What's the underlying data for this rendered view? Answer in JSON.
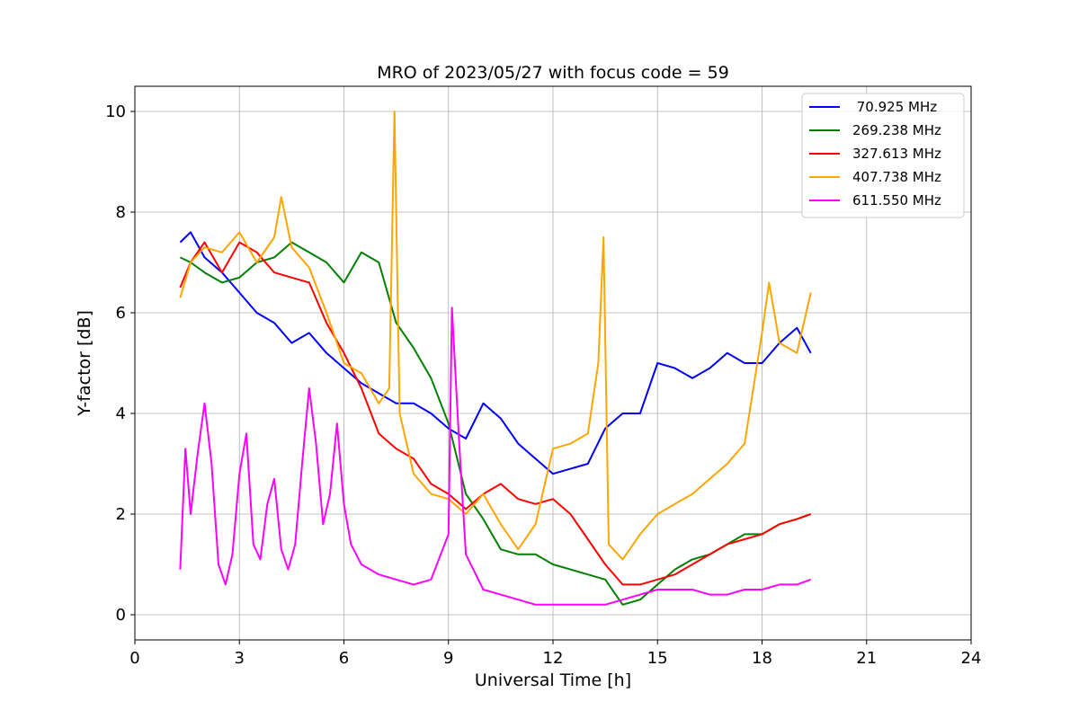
{
  "chart_data": {
    "type": "line",
    "title": "MRO of 2023/05/27 with focus code = 59",
    "xlabel": "Universal Time [h]",
    "ylabel": "Y-factor [dB]",
    "xlim": [
      0,
      24
    ],
    "ylim": [
      -0.5,
      10.5
    ],
    "xticks": [
      0,
      3,
      6,
      9,
      12,
      15,
      18,
      21,
      24
    ],
    "yticks": [
      0,
      2,
      4,
      6,
      8,
      10
    ],
    "grid": true,
    "legend_position": "top-right",
    "series": [
      {
        "name": " 70.925 MHz",
        "color": "#0000ff",
        "x": [
          1.3,
          1.6,
          2.0,
          2.5,
          3.0,
          3.5,
          4.0,
          4.5,
          5.0,
          5.5,
          6.0,
          6.5,
          7.0,
          7.5,
          8.0,
          8.5,
          9.0,
          9.5,
          10.0,
          10.5,
          11.0,
          11.5,
          12.0,
          12.5,
          13.0,
          13.5,
          14.0,
          14.5,
          15.0,
          15.5,
          16.0,
          16.5,
          17.0,
          17.5,
          18.0,
          18.5,
          19.0,
          19.4
        ],
        "y": [
          7.4,
          7.6,
          7.1,
          6.8,
          6.4,
          6.0,
          5.8,
          5.4,
          5.6,
          5.2,
          4.9,
          4.6,
          4.4,
          4.2,
          4.2,
          4.0,
          3.7,
          3.5,
          4.2,
          3.9,
          3.4,
          3.1,
          2.8,
          2.9,
          3.0,
          3.7,
          4.0,
          4.0,
          5.0,
          4.9,
          4.7,
          4.9,
          5.2,
          5.0,
          5.0,
          5.4,
          5.7,
          5.2
        ]
      },
      {
        "name": "269.238 MHz",
        "color": "#008000",
        "x": [
          1.3,
          1.6,
          2.0,
          2.5,
          3.0,
          3.5,
          4.0,
          4.5,
          5.0,
          5.5,
          6.0,
          6.5,
          7.0,
          7.5,
          8.0,
          8.5,
          9.0,
          9.5,
          10.0,
          10.5,
          11.0,
          11.5,
          12.0,
          12.5,
          13.0,
          13.5,
          14.0,
          14.5,
          15.0,
          15.5,
          16.0,
          16.5,
          17.0,
          17.5,
          18.0,
          18.5,
          19.0,
          19.4
        ],
        "y": [
          7.1,
          7.0,
          6.8,
          6.6,
          6.7,
          7.0,
          7.1,
          7.4,
          7.2,
          7.0,
          6.6,
          7.2,
          7.0,
          5.8,
          5.3,
          4.7,
          3.8,
          2.4,
          1.9,
          1.3,
          1.2,
          1.2,
          1.0,
          0.9,
          0.8,
          0.7,
          0.2,
          0.3,
          0.6,
          0.9,
          1.1,
          1.2,
          1.4,
          1.6,
          1.6,
          1.8,
          1.9,
          2.0
        ]
      },
      {
        "name": "327.613 MHz",
        "color": "#ff0000",
        "x": [
          1.3,
          1.6,
          2.0,
          2.5,
          3.0,
          3.5,
          4.0,
          4.5,
          5.0,
          5.5,
          6.0,
          6.5,
          7.0,
          7.5,
          8.0,
          8.5,
          9.0,
          9.5,
          10.0,
          10.5,
          11.0,
          11.5,
          12.0,
          12.5,
          13.0,
          13.5,
          14.0,
          14.5,
          15.0,
          15.5,
          16.0,
          16.5,
          17.0,
          17.5,
          18.0,
          18.5,
          19.0,
          19.4
        ],
        "y": [
          6.5,
          7.0,
          7.4,
          6.8,
          7.4,
          7.2,
          6.8,
          6.7,
          6.6,
          5.8,
          5.2,
          4.5,
          3.6,
          3.3,
          3.1,
          2.6,
          2.4,
          2.1,
          2.4,
          2.6,
          2.3,
          2.2,
          2.3,
          2.0,
          1.5,
          1.0,
          0.6,
          0.6,
          0.7,
          0.8,
          1.0,
          1.2,
          1.4,
          1.5,
          1.6,
          1.8,
          1.9,
          2.0
        ]
      },
      {
        "name": "407.738 MHz",
        "color": "#ffa500",
        "x": [
          1.3,
          1.6,
          2.0,
          2.5,
          3.0,
          3.5,
          4.0,
          4.2,
          4.5,
          5.0,
          5.5,
          6.0,
          6.5,
          7.0,
          7.3,
          7.45,
          7.6,
          8.0,
          8.5,
          9.0,
          9.5,
          10.0,
          10.5,
          11.0,
          11.5,
          12.0,
          12.5,
          13.0,
          13.3,
          13.45,
          13.6,
          14.0,
          14.5,
          15.0,
          15.5,
          16.0,
          16.5,
          17.0,
          17.5,
          18.0,
          18.2,
          18.5,
          19.0,
          19.4
        ],
        "y": [
          6.3,
          7.0,
          7.3,
          7.2,
          7.6,
          7.0,
          7.5,
          8.3,
          7.3,
          6.9,
          6.0,
          5.0,
          4.8,
          4.2,
          4.5,
          10.0,
          4.0,
          2.8,
          2.4,
          2.3,
          2.0,
          2.4,
          1.8,
          1.3,
          1.8,
          3.3,
          3.4,
          3.6,
          5.0,
          7.5,
          1.4,
          1.1,
          1.6,
          2.0,
          2.2,
          2.4,
          2.7,
          3.0,
          3.4,
          5.6,
          6.6,
          5.4,
          5.2,
          6.4
        ]
      },
      {
        "name": "611.550 MHz",
        "color": "#ff00ff",
        "x": [
          1.3,
          1.45,
          1.6,
          1.8,
          2.0,
          2.2,
          2.4,
          2.6,
          2.8,
          3.0,
          3.2,
          3.4,
          3.6,
          3.8,
          4.0,
          4.2,
          4.4,
          4.6,
          4.8,
          5.0,
          5.2,
          5.4,
          5.6,
          5.8,
          6.0,
          6.2,
          6.5,
          7.0,
          7.5,
          8.0,
          8.5,
          9.0,
          9.1,
          9.3,
          9.5,
          10.0,
          10.5,
          11.0,
          11.5,
          12.0,
          12.5,
          13.0,
          13.5,
          14.0,
          14.5,
          15.0,
          15.5,
          16.0,
          16.5,
          17.0,
          17.5,
          18.0,
          18.5,
          19.0,
          19.4
        ],
        "y": [
          0.9,
          3.3,
          2.0,
          3.2,
          4.2,
          3.0,
          1.0,
          0.6,
          1.2,
          2.8,
          3.6,
          1.4,
          1.1,
          2.2,
          2.7,
          1.3,
          0.9,
          1.4,
          3.0,
          4.5,
          3.4,
          1.8,
          2.4,
          3.8,
          2.2,
          1.4,
          1.0,
          0.8,
          0.7,
          0.6,
          0.7,
          1.6,
          6.1,
          3.5,
          1.2,
          0.5,
          0.4,
          0.3,
          0.2,
          0.2,
          0.2,
          0.2,
          0.2,
          0.3,
          0.4,
          0.5,
          0.5,
          0.5,
          0.4,
          0.4,
          0.5,
          0.5,
          0.6,
          0.6,
          0.7
        ]
      }
    ]
  }
}
